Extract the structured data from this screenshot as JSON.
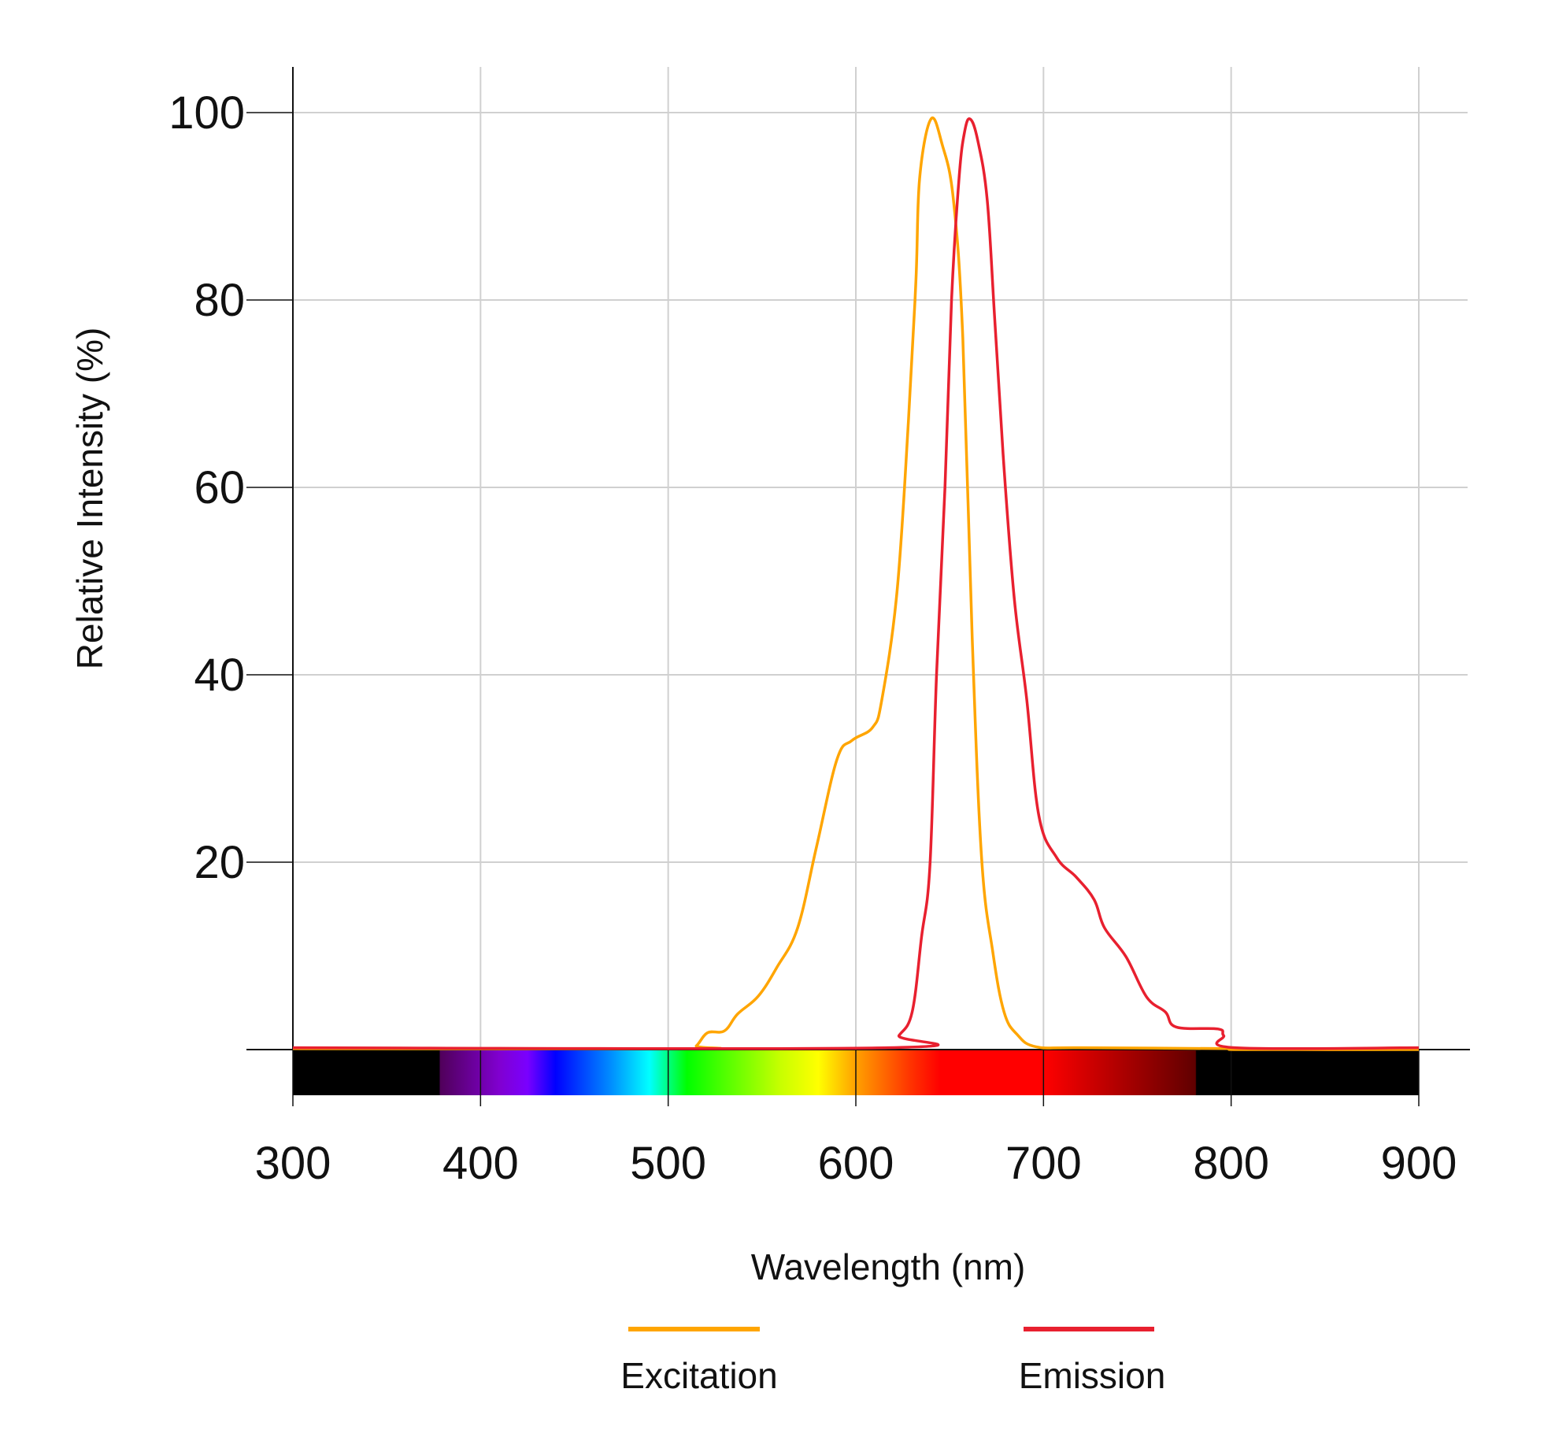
{
  "chart_data": {
    "type": "line",
    "title": "",
    "xlabel": "Wavelength (nm)",
    "ylabel": "Relative Intensity (%)",
    "xlim": [
      300,
      900
    ],
    "ylim": [
      0,
      100
    ],
    "x_ticks": [
      "300",
      "400",
      "500",
      "600",
      "700",
      "800",
      "900"
    ],
    "y_ticks": [
      "20",
      "40",
      "60",
      "80",
      "100"
    ],
    "grid": true,
    "legend_position": "bottom",
    "spectrum_bar": true,
    "series": [
      {
        "name": "Excitation",
        "color": "#FFA500",
        "x": [
          300,
          510,
          515,
          521,
          530,
          537,
          548,
          558,
          569,
          579,
          590,
          598,
          609,
          614,
          622,
          628,
          632,
          634,
          640,
          646,
          652,
          657,
          662,
          667,
          673,
          679,
          686,
          696,
          720,
          800,
          805,
          900
        ],
        "y": [
          0.1,
          0.1,
          0.4,
          1.8,
          2.0,
          3.8,
          5.7,
          8.8,
          13,
          21.6,
          31,
          33,
          34.4,
          37.5,
          49,
          67,
          82,
          93,
          99.3,
          96.6,
          90.7,
          76,
          44,
          20.5,
          10.4,
          4,
          1.6,
          0.3,
          0.2,
          0.1,
          0,
          0
        ]
      },
      {
        "name": "Emission",
        "color": "#E8202F",
        "x": [
          300,
          617,
          623,
          630,
          635,
          639.5,
          643,
          647.5,
          651,
          655,
          658,
          661,
          665,
          670,
          674,
          679,
          684.5,
          691,
          697.5,
          707,
          717.5,
          727,
          732.5,
          744,
          755,
          765,
          770.8,
          793,
          796,
          802,
          900
        ],
        "y": [
          0.2,
          0.2,
          1.5,
          4,
          12,
          19.7,
          40,
          60,
          80,
          93,
          98,
          99.3,
          97,
          90.7,
          78,
          62,
          48,
          37.5,
          25,
          20.5,
          18.4,
          16,
          13,
          9.9,
          5.6,
          4,
          2.4,
          2.2,
          1.5,
          0.2,
          0.2
        ]
      }
    ]
  }
}
